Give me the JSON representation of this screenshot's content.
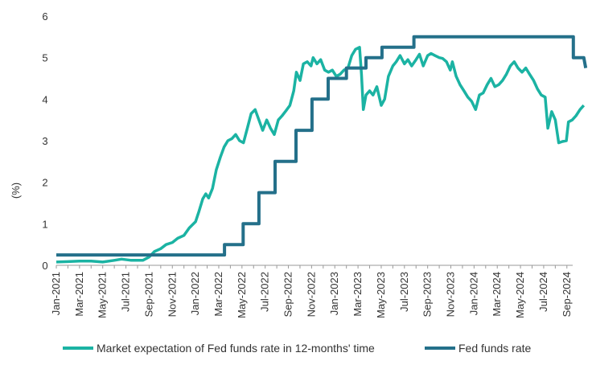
{
  "chart_data": {
    "type": "line",
    "title": "",
    "xlabel": "",
    "ylabel": "(%)",
    "ylim": [
      0,
      6
    ],
    "yticks": [
      0,
      1,
      2,
      3,
      4,
      5,
      6
    ],
    "xlim": [
      "2021-01",
      "2024-10"
    ],
    "xticks": [
      "Jan-2021",
      "Mar-2021",
      "May-2021",
      "Jul-2021",
      "Sep-2021",
      "Nov-2021",
      "Jan-2022",
      "Mar-2022",
      "May-2022",
      "Jul-2022",
      "Sep-2022",
      "Nov-2022",
      "Jan-2023",
      "Mar-2023",
      "May-2023",
      "Jul-2023",
      "Sep-2023",
      "Nov-2023",
      "Jan-2024",
      "Mar-2024",
      "May-2024",
      "Jul-2024",
      "Sep-2024"
    ],
    "grid": false,
    "legend_position": "bottom",
    "series": [
      {
        "name": "Market expectation of Fed funds rate in 12-months' time",
        "color": "#1bb3a3",
        "points": [
          [
            "2021-01-01",
            0.08
          ],
          [
            "2021-02-01",
            0.09
          ],
          [
            "2021-03-01",
            0.1
          ],
          [
            "2021-04-01",
            0.1
          ],
          [
            "2021-05-01",
            0.08
          ],
          [
            "2021-06-01",
            0.12
          ],
          [
            "2021-06-20",
            0.15
          ],
          [
            "2021-07-15",
            0.12
          ],
          [
            "2021-08-15",
            0.12
          ],
          [
            "2021-09-01",
            0.2
          ],
          [
            "2021-09-15",
            0.33
          ],
          [
            "2021-10-01",
            0.4
          ],
          [
            "2021-10-15",
            0.5
          ],
          [
            "2021-11-01",
            0.55
          ],
          [
            "2021-11-15",
            0.65
          ],
          [
            "2021-12-01",
            0.72
          ],
          [
            "2021-12-15",
            0.9
          ],
          [
            "2022-01-01",
            1.05
          ],
          [
            "2022-01-10",
            1.3
          ],
          [
            "2022-01-20",
            1.6
          ],
          [
            "2022-01-28",
            1.72
          ],
          [
            "2022-02-05",
            1.62
          ],
          [
            "2022-02-15",
            1.85
          ],
          [
            "2022-02-25",
            2.3
          ],
          [
            "2022-03-05",
            2.6
          ],
          [
            "2022-03-15",
            2.85
          ],
          [
            "2022-03-25",
            3.0
          ],
          [
            "2022-04-05",
            3.05
          ],
          [
            "2022-04-15",
            3.15
          ],
          [
            "2022-04-25",
            3.0
          ],
          [
            "2022-05-05",
            2.95
          ],
          [
            "2022-05-15",
            3.3
          ],
          [
            "2022-05-25",
            3.65
          ],
          [
            "2022-06-05",
            3.75
          ],
          [
            "2022-06-15",
            3.5
          ],
          [
            "2022-06-25",
            3.25
          ],
          [
            "2022-07-05",
            3.5
          ],
          [
            "2022-07-15",
            3.3
          ],
          [
            "2022-07-25",
            3.15
          ],
          [
            "2022-08-05",
            3.5
          ],
          [
            "2022-08-15",
            3.6
          ],
          [
            "2022-08-25",
            3.72
          ],
          [
            "2022-09-05",
            3.85
          ],
          [
            "2022-09-15",
            4.2
          ],
          [
            "2022-09-22",
            4.65
          ],
          [
            "2022-10-01",
            4.45
          ],
          [
            "2022-10-10",
            4.85
          ],
          [
            "2022-10-20",
            4.9
          ],
          [
            "2022-10-30",
            4.8
          ],
          [
            "2022-11-05",
            5.0
          ],
          [
            "2022-11-15",
            4.85
          ],
          [
            "2022-11-25",
            4.95
          ],
          [
            "2022-12-05",
            4.7
          ],
          [
            "2022-12-15",
            4.65
          ],
          [
            "2022-12-25",
            4.7
          ],
          [
            "2023-01-05",
            4.55
          ],
          [
            "2023-01-15",
            4.6
          ],
          [
            "2023-01-25",
            4.7
          ],
          [
            "2023-02-05",
            4.75
          ],
          [
            "2023-02-15",
            5.05
          ],
          [
            "2023-02-25",
            5.2
          ],
          [
            "2023-03-05",
            5.25
          ],
          [
            "2023-03-10",
            4.6
          ],
          [
            "2023-03-15",
            3.75
          ],
          [
            "2023-03-22",
            4.1
          ],
          [
            "2023-04-01",
            4.2
          ],
          [
            "2023-04-10",
            4.1
          ],
          [
            "2023-04-20",
            4.3
          ],
          [
            "2023-05-01",
            3.85
          ],
          [
            "2023-05-10",
            4.0
          ],
          [
            "2023-05-20",
            4.55
          ],
          [
            "2023-06-01",
            4.8
          ],
          [
            "2023-06-10",
            4.9
          ],
          [
            "2023-06-20",
            5.05
          ],
          [
            "2023-07-01",
            4.85
          ],
          [
            "2023-07-10",
            4.95
          ],
          [
            "2023-07-20",
            4.8
          ],
          [
            "2023-08-01",
            4.95
          ],
          [
            "2023-08-10",
            5.08
          ],
          [
            "2023-08-20",
            4.8
          ],
          [
            "2023-09-01",
            5.05
          ],
          [
            "2023-09-10",
            5.1
          ],
          [
            "2023-09-20",
            5.05
          ],
          [
            "2023-10-01",
            5.0
          ],
          [
            "2023-10-10",
            4.98
          ],
          [
            "2023-10-20",
            4.9
          ],
          [
            "2023-10-30",
            4.7
          ],
          [
            "2023-11-05",
            4.9
          ],
          [
            "2023-11-15",
            4.55
          ],
          [
            "2023-11-25",
            4.35
          ],
          [
            "2023-12-05",
            4.2
          ],
          [
            "2023-12-15",
            4.05
          ],
          [
            "2023-12-25",
            3.95
          ],
          [
            "2024-01-05",
            3.75
          ],
          [
            "2024-01-15",
            4.1
          ],
          [
            "2024-01-25",
            4.15
          ],
          [
            "2024-02-05",
            4.35
          ],
          [
            "2024-02-15",
            4.5
          ],
          [
            "2024-02-25",
            4.3
          ],
          [
            "2024-03-05",
            4.35
          ],
          [
            "2024-03-15",
            4.45
          ],
          [
            "2024-03-25",
            4.6
          ],
          [
            "2024-04-05",
            4.8
          ],
          [
            "2024-04-15",
            4.9
          ],
          [
            "2024-04-25",
            4.75
          ],
          [
            "2024-05-05",
            4.65
          ],
          [
            "2024-05-15",
            4.75
          ],
          [
            "2024-05-25",
            4.6
          ],
          [
            "2024-06-05",
            4.45
          ],
          [
            "2024-06-15",
            4.25
          ],
          [
            "2024-06-25",
            4.1
          ],
          [
            "2024-07-05",
            4.05
          ],
          [
            "2024-07-12",
            3.3
          ],
          [
            "2024-07-22",
            3.7
          ],
          [
            "2024-08-01",
            3.5
          ],
          [
            "2024-08-10",
            2.95
          ],
          [
            "2024-08-20",
            2.98
          ],
          [
            "2024-08-30",
            3.0
          ],
          [
            "2024-09-05",
            3.45
          ],
          [
            "2024-09-15",
            3.5
          ],
          [
            "2024-09-25",
            3.6
          ],
          [
            "2024-10-05",
            3.75
          ],
          [
            "2024-10-15",
            3.85
          ]
        ]
      },
      {
        "name": "Fed funds rate",
        "color": "#24708a",
        "points": [
          [
            "2021-01-01",
            0.25
          ],
          [
            "2022-03-16",
            0.25
          ],
          [
            "2022-03-16",
            0.5
          ],
          [
            "2022-05-04",
            0.5
          ],
          [
            "2022-05-04",
            1.0
          ],
          [
            "2022-06-15",
            1.0
          ],
          [
            "2022-06-15",
            1.75
          ],
          [
            "2022-07-27",
            1.75
          ],
          [
            "2022-07-27",
            2.5
          ],
          [
            "2022-09-21",
            2.5
          ],
          [
            "2022-09-21",
            3.25
          ],
          [
            "2022-11-02",
            3.25
          ],
          [
            "2022-11-02",
            4.0
          ],
          [
            "2022-12-14",
            4.0
          ],
          [
            "2022-12-14",
            4.5
          ],
          [
            "2023-02-01",
            4.5
          ],
          [
            "2023-02-01",
            4.75
          ],
          [
            "2023-03-22",
            4.75
          ],
          [
            "2023-03-22",
            5.0
          ],
          [
            "2023-05-03",
            5.0
          ],
          [
            "2023-05-03",
            5.25
          ],
          [
            "2023-07-26",
            5.25
          ],
          [
            "2023-07-26",
            5.5
          ],
          [
            "2024-09-18",
            5.5
          ],
          [
            "2024-09-18",
            5.0
          ],
          [
            "2024-10-15",
            5.0
          ],
          [
            "2024-10-20",
            4.75
          ]
        ]
      }
    ]
  }
}
